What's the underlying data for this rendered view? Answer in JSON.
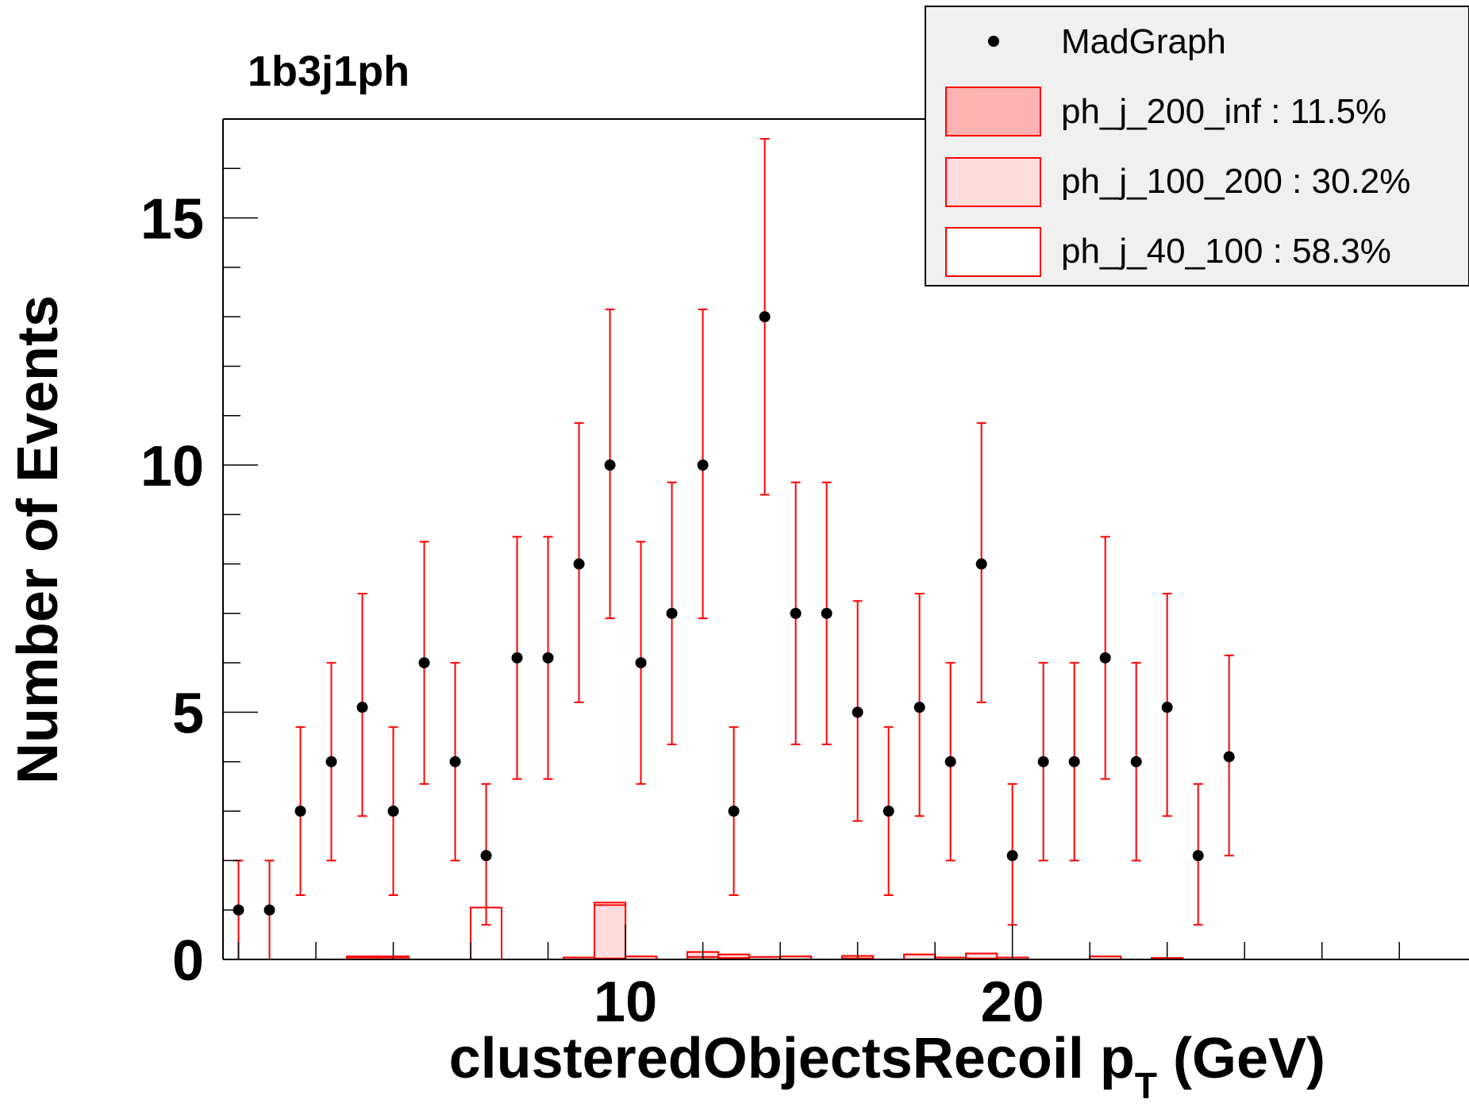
{
  "chart_data": {
    "type": "scatter",
    "title": "1b3j1ph",
    "xlabel": "clusteredObjectsRecoil p",
    "xlabel_subscript": "T",
    "xlabel_unit": " (GeV)",
    "ylabel": "Number of Events",
    "xlim": [
      -0.4,
      31.8
    ],
    "ylim": [
      0,
      17
    ],
    "x_ticks": [
      10,
      20
    ],
    "y_ticks": [
      0,
      5,
      10,
      15
    ],
    "x_tick_labels": [
      "10",
      "20"
    ],
    "y_tick_labels": [
      "0",
      "5",
      "10",
      "15"
    ],
    "legend_position": "top-right",
    "series": [
      {
        "name": "MadGraph",
        "kind": "points-with-errors",
        "color": "#000000",
        "error_color": "#ff0000",
        "x": [
          0,
          0.8,
          1.6,
          2.4,
          3.2,
          4.0,
          4.8,
          5.6,
          6.4,
          7.2,
          8.0,
          8.8,
          9.6,
          10.4,
          11.2,
          12.0,
          12.8,
          13.6,
          14.4,
          15.2,
          16.0,
          16.8,
          17.6,
          18.4,
          19.2,
          20.0,
          20.8,
          21.6,
          22.4,
          23.2,
          24.0,
          24.8,
          25.6
        ],
        "y": [
          1,
          1,
          3,
          4,
          5.1,
          3,
          6,
          4,
          2.1,
          6.1,
          6.1,
          8,
          10,
          6,
          7,
          10,
          3,
          13,
          7,
          7,
          5,
          3,
          5.1,
          4,
          8,
          2.1,
          4,
          4,
          6.1,
          4,
          5.1,
          2.1,
          4.1
        ],
        "err_low": [
          1,
          1,
          1.7,
          2,
          2.2,
          1.7,
          2.45,
          2,
          1.4,
          2.45,
          2.45,
          2.8,
          3.1,
          2.45,
          2.65,
          3.1,
          1.7,
          3.6,
          2.65,
          2.65,
          2.2,
          1.7,
          2.2,
          2,
          2.8,
          1.4,
          2,
          2,
          2.45,
          2,
          2.2,
          1.4,
          2
        ],
        "err_high": [
          1,
          1,
          1.7,
          2,
          2.3,
          1.7,
          2.45,
          2,
          1.45,
          2.45,
          2.45,
          2.85,
          3.15,
          2.45,
          2.65,
          3.15,
          1.7,
          3.6,
          2.65,
          2.65,
          2.25,
          1.7,
          2.3,
          2,
          2.85,
          1.45,
          2,
          2,
          2.45,
          2,
          2.3,
          1.45,
          2.05
        ]
      },
      {
        "name": "ph_j_200_inf : 11.5%",
        "kind": "histogram",
        "color": "#ff0000",
        "fill": "#ffb3b3",
        "bin_edges": [
          -0.4,
          0.4,
          1.2,
          2.0,
          2.8,
          3.6,
          4.4,
          5.2,
          6.0,
          6.8,
          7.6,
          8.4,
          9.2,
          10.0,
          10.8,
          11.6,
          12.4,
          13.2,
          14.0,
          14.8,
          15.6,
          16.4,
          17.2,
          18.0,
          18.8,
          19.6,
          20.4,
          21.2,
          22.0,
          22.8,
          23.6,
          24.4,
          25.2,
          26.0
        ],
        "values": [
          0,
          0,
          0,
          0,
          0.04,
          0.04,
          0,
          0,
          0,
          0,
          0,
          0,
          0.02,
          0,
          0,
          0.05,
          0.03,
          0,
          0,
          0,
          0.02,
          0,
          0,
          0,
          0.02,
          0,
          0,
          0,
          0,
          0,
          0,
          0,
          0
        ]
      },
      {
        "name": "ph_j_100_200 : 30.2%",
        "kind": "histogram",
        "color": "#ff0000",
        "fill": "#ffdddd",
        "bin_edges": [
          -0.4,
          0.4,
          1.2,
          2.0,
          2.8,
          3.6,
          4.4,
          5.2,
          6.0,
          6.8,
          7.6,
          8.4,
          9.2,
          10.0,
          10.8,
          11.6,
          12.4,
          13.2,
          14.0,
          14.8,
          15.6,
          16.4,
          17.2,
          18.0,
          18.8,
          19.6,
          20.4,
          21.2,
          22.0,
          22.8,
          23.6,
          24.4,
          25.2,
          26.0
        ],
        "values": [
          0,
          0,
          0,
          0,
          0.06,
          0.06,
          0,
          0,
          0,
          0,
          0,
          0.04,
          1.1,
          0.06,
          0,
          0.15,
          0.1,
          0.05,
          0.06,
          0,
          0.07,
          0,
          0.1,
          0.04,
          0.12,
          0.04,
          0,
          0,
          0.06,
          0,
          0.03,
          0,
          0
        ]
      },
      {
        "name": "ph_j_40_100 : 58.3%",
        "kind": "histogram",
        "color": "#ff0000",
        "fill": "#ffffff",
        "bin_edges": [
          -0.4,
          0.4,
          1.2,
          2.0,
          2.8,
          3.6,
          4.4,
          5.2,
          6.0,
          6.8,
          7.6,
          8.4,
          9.2,
          10.0,
          10.8,
          11.6,
          12.4,
          13.2,
          14.0,
          14.8,
          15.6,
          16.4,
          17.2,
          18.0,
          18.8,
          19.6,
          20.4,
          21.2,
          22.0,
          22.8,
          23.6,
          24.4,
          25.2,
          26.0
        ],
        "values": [
          0,
          0,
          0,
          0,
          0.06,
          0.06,
          0,
          0,
          1.05,
          0,
          0,
          0.04,
          1.15,
          0.06,
          0,
          0.15,
          0.1,
          0.05,
          0.06,
          0,
          0.07,
          0,
          0.1,
          0.04,
          0.12,
          0.04,
          0,
          0,
          0.06,
          0,
          0.03,
          0,
          0
        ]
      }
    ]
  }
}
